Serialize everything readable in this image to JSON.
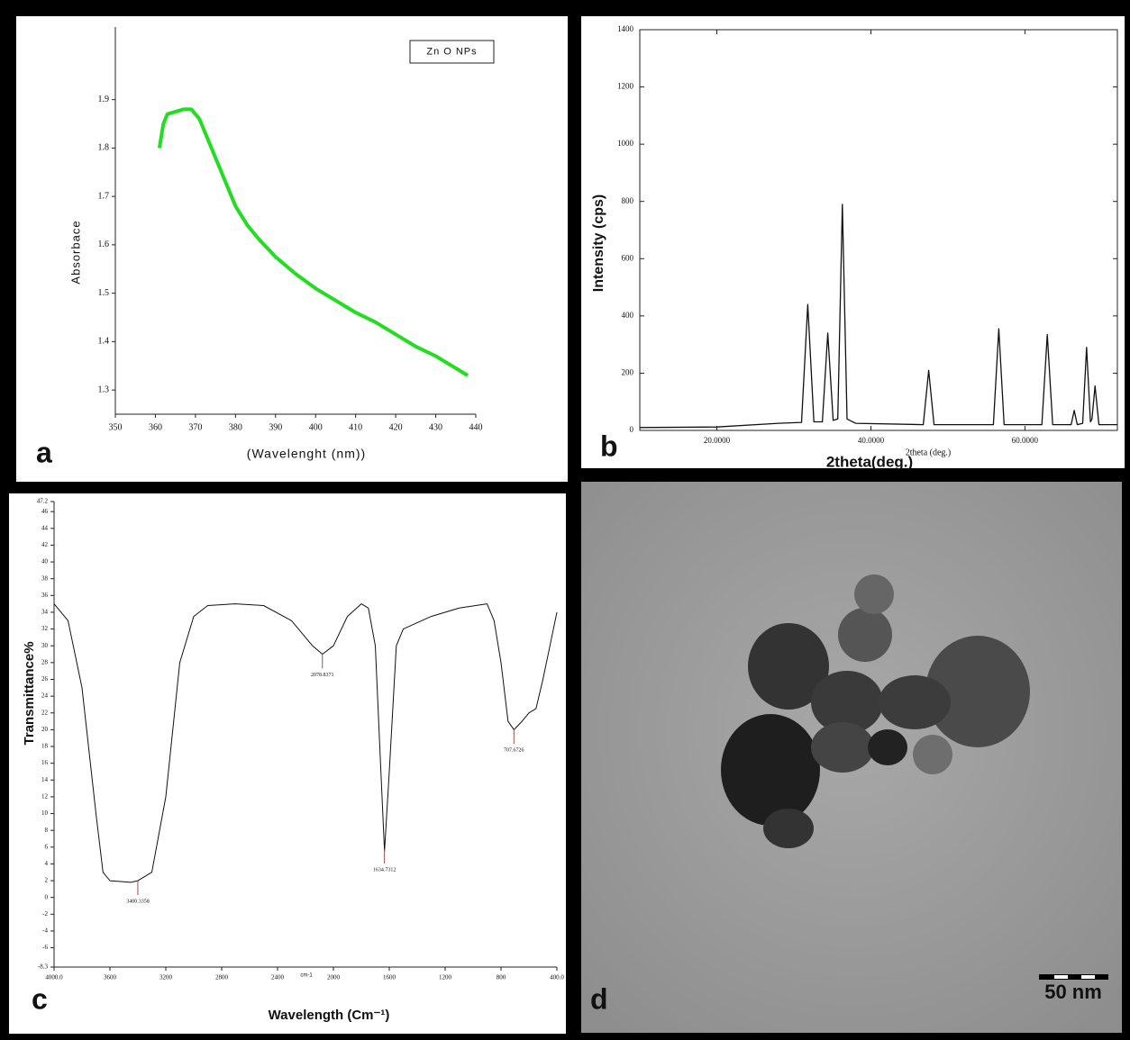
{
  "chart_data": [
    {
      "type": "line",
      "panel_label": "a",
      "x_label": "(Wavelenght (nm))",
      "y_label": "Absorbace",
      "x": [
        361,
        362,
        363,
        365,
        367,
        369,
        371,
        373,
        375,
        377,
        380,
        383,
        386,
        390,
        395,
        400,
        405,
        410,
        415,
        420,
        425,
        430,
        435,
        438
      ],
      "series": [
        {
          "name": "Zn O NPs",
          "color": "#22dd22",
          "values": [
            1.8,
            1.85,
            1.87,
            1.875,
            1.88,
            1.88,
            1.86,
            1.82,
            1.78,
            1.74,
            1.68,
            1.64,
            1.61,
            1.575,
            1.54,
            1.51,
            1.485,
            1.46,
            1.44,
            1.415,
            1.39,
            1.37,
            1.345,
            1.33
          ]
        }
      ],
      "xlim": [
        350,
        440
      ],
      "xticks": [
        350,
        360,
        370,
        380,
        390,
        400,
        410,
        420,
        430,
        440
      ],
      "ylim": [
        1.25,
        2.05
      ],
      "yticks": [
        1.3,
        1.4,
        1.5,
        1.6,
        1.7,
        1.8,
        1.9
      ],
      "legend": "top-right"
    },
    {
      "type": "line",
      "panel_label": "b",
      "x_label": "2theta(deg.)",
      "x_unit_label": "2theta (deg.)",
      "y_label": "Intensity (cps)",
      "color": "#111111",
      "x": [
        10,
        20,
        28,
        31,
        31.8,
        32.6,
        33.7,
        34.4,
        35.1,
        35.7,
        36.3,
        36.9,
        38,
        46.8,
        47.5,
        48.2,
        55.9,
        56.6,
        57.3,
        62.2,
        62.9,
        63.6,
        66,
        66.4,
        66.8,
        67.5,
        68,
        68.5,
        68.7,
        69.1,
        69.6,
        72
      ],
      "values": [
        10,
        12,
        25,
        28,
        440,
        30,
        30,
        340,
        35,
        40,
        790,
        40,
        25,
        20,
        210,
        20,
        20,
        355,
        20,
        20,
        335,
        20,
        20,
        70,
        20,
        25,
        290,
        30,
        40,
        155,
        20,
        20
      ],
      "xlim": [
        10,
        72
      ],
      "xticks": [
        {
          "value": 20,
          "label": "20.0000"
        },
        {
          "value": 40,
          "label": "40.0000"
        },
        {
          "value": 60,
          "label": "60.0000"
        }
      ],
      "ylim": [
        0,
        1400
      ],
      "yticks": [
        0,
        200,
        400,
        600,
        800,
        1000,
        1200,
        1400
      ]
    },
    {
      "type": "line",
      "panel_label": "c",
      "x_label": "Wavelength (Cm⁻¹)",
      "x_unit": "cm-1",
      "y_label": "Transmittance%",
      "color": "#111111",
      "x": [
        4000,
        3900,
        3800,
        3700,
        3650,
        3600,
        3450,
        3400,
        3300,
        3200,
        3100,
        3000,
        2900,
        2700,
        2500,
        2300,
        2150,
        2078,
        2000,
        1900,
        1800,
        1750,
        1700,
        1660,
        1634,
        1600,
        1550,
        1500,
        1300,
        1100,
        900,
        850,
        800,
        750,
        707,
        650,
        600,
        550,
        500,
        450,
        400
      ],
      "values": [
        35,
        33,
        25,
        10,
        3,
        2,
        1.8,
        2,
        3,
        12,
        28,
        33.5,
        34.8,
        35,
        34.8,
        33,
        30,
        29,
        30,
        33.5,
        35,
        34.5,
        30,
        15,
        5.5,
        15,
        30,
        32,
        33.5,
        34.5,
        35,
        33,
        28,
        21,
        20,
        21,
        22,
        22.5,
        26,
        30,
        34
      ],
      "xlim": [
        4000,
        400
      ],
      "xticks": [
        {
          "value": 4000,
          "label": "4000.0"
        },
        3600,
        3200,
        2800,
        2400,
        2000,
        1600,
        1200,
        800,
        {
          "value": 400,
          "label": "400.0"
        }
      ],
      "ylim": [
        -8.3,
        47.2
      ],
      "yticks": [
        -8.3,
        -6,
        -4,
        -2,
        0,
        2,
        4,
        6,
        8,
        10,
        12,
        14,
        16,
        18,
        20,
        22,
        24,
        26,
        28,
        30,
        32,
        34,
        36,
        38,
        40,
        42,
        44,
        46,
        47.2
      ],
      "peaks": [
        {
          "value": 3400.3358,
          "label": "3400.3358"
        },
        {
          "value": 2078.8371,
          "label": "2078.8371"
        },
        {
          "value": 1634.7312,
          "label": "1634.7312"
        },
        {
          "value": 707.6726,
          "label": "707.6726"
        }
      ]
    }
  ],
  "tem_image": {
    "panel_label": "d",
    "scale_bar": "50 nm"
  }
}
